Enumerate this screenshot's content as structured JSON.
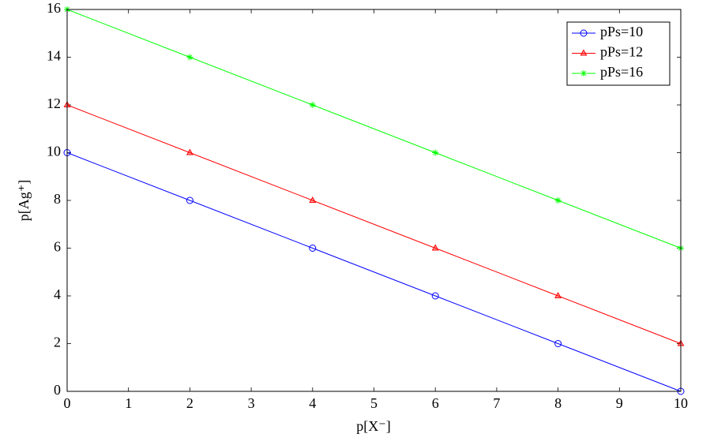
{
  "chart_data": {
    "type": "line",
    "xlabel": "p[X⁻]",
    "ylabel": "p[Ag⁺]",
    "x": [
      0,
      2,
      4,
      6,
      8,
      10
    ],
    "series": [
      {
        "name": "pPs=10",
        "color": "#0000ff",
        "marker": "circle",
        "values": [
          10,
          8,
          6,
          4,
          2,
          0
        ]
      },
      {
        "name": "pPs=12",
        "color": "#ff0000",
        "marker": "triangle",
        "values": [
          12,
          10,
          8,
          6,
          4,
          2
        ]
      },
      {
        "name": "pPs=16",
        "color": "#00ff00",
        "marker": "star",
        "values": [
          16,
          14,
          12,
          10,
          8,
          6
        ]
      }
    ],
    "xlim": [
      0,
      10
    ],
    "xticks": [
      0,
      1,
      2,
      3,
      4,
      5,
      6,
      7,
      8,
      9,
      10
    ],
    "ylim": [
      0,
      16
    ],
    "yticks": [
      0,
      2,
      4,
      6,
      8,
      10,
      12,
      14,
      16
    ],
    "grid": false,
    "legend": "upper right"
  }
}
